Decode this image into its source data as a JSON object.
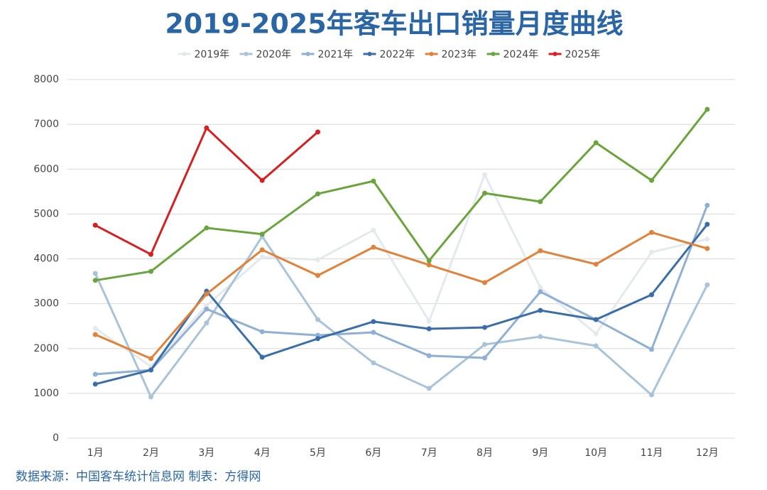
{
  "chart_data": {
    "type": "line",
    "title": "2019-2025年客车出口销量月度曲线",
    "categories": [
      "1月",
      "2月",
      "3月",
      "4月",
      "5月",
      "6月",
      "7月",
      "8月",
      "9月",
      "10月",
      "11月",
      "12月"
    ],
    "series": [
      {
        "name": "2019年",
        "color": "#e4e9ec",
        "values": [
          2450,
          1600,
          2960,
          4040,
          3980,
          4640,
          2610,
          5875,
          3360,
          2330,
          4150,
          4440
        ]
      },
      {
        "name": "2020年",
        "color": "#a9c3d8",
        "values": [
          3675,
          920,
          2570,
          4500,
          2645,
          1680,
          1110,
          2090,
          2265,
          2060,
          965,
          3420
        ]
      },
      {
        "name": "2021年",
        "color": "#8fb0d4",
        "values": [
          1425,
          1520,
          2880,
          2375,
          2295,
          2360,
          1840,
          1790,
          3265,
          2645,
          1980,
          5195
        ]
      },
      {
        "name": "2022年",
        "color": "#3a6ea8",
        "values": [
          1205,
          1520,
          3280,
          1805,
          2220,
          2600,
          2440,
          2470,
          2850,
          2645,
          3200,
          4770
        ]
      },
      {
        "name": "2023年",
        "color": "#e0823a",
        "values": [
          2310,
          1775,
          3215,
          4200,
          3630,
          4260,
          3865,
          3470,
          4180,
          3880,
          4590,
          4230
        ]
      },
      {
        "name": "2024年",
        "color": "#6aa43c",
        "values": [
          3520,
          3720,
          4690,
          4550,
          5450,
          5735,
          3960,
          5465,
          5275,
          6590,
          5750,
          7335
        ]
      },
      {
        "name": "2025年",
        "color": "#d62020",
        "values": [
          4750,
          4100,
          6920,
          5750,
          6830,
          null,
          null,
          null,
          null,
          null,
          null,
          null
        ]
      }
    ],
    "ylim": [
      0,
      8000
    ],
    "yticks": [
      0,
      1000,
      2000,
      3000,
      4000,
      5000,
      6000,
      7000,
      8000
    ],
    "grid": true,
    "source": "数据来源：中国客车统计信息网 制表：方得网"
  }
}
